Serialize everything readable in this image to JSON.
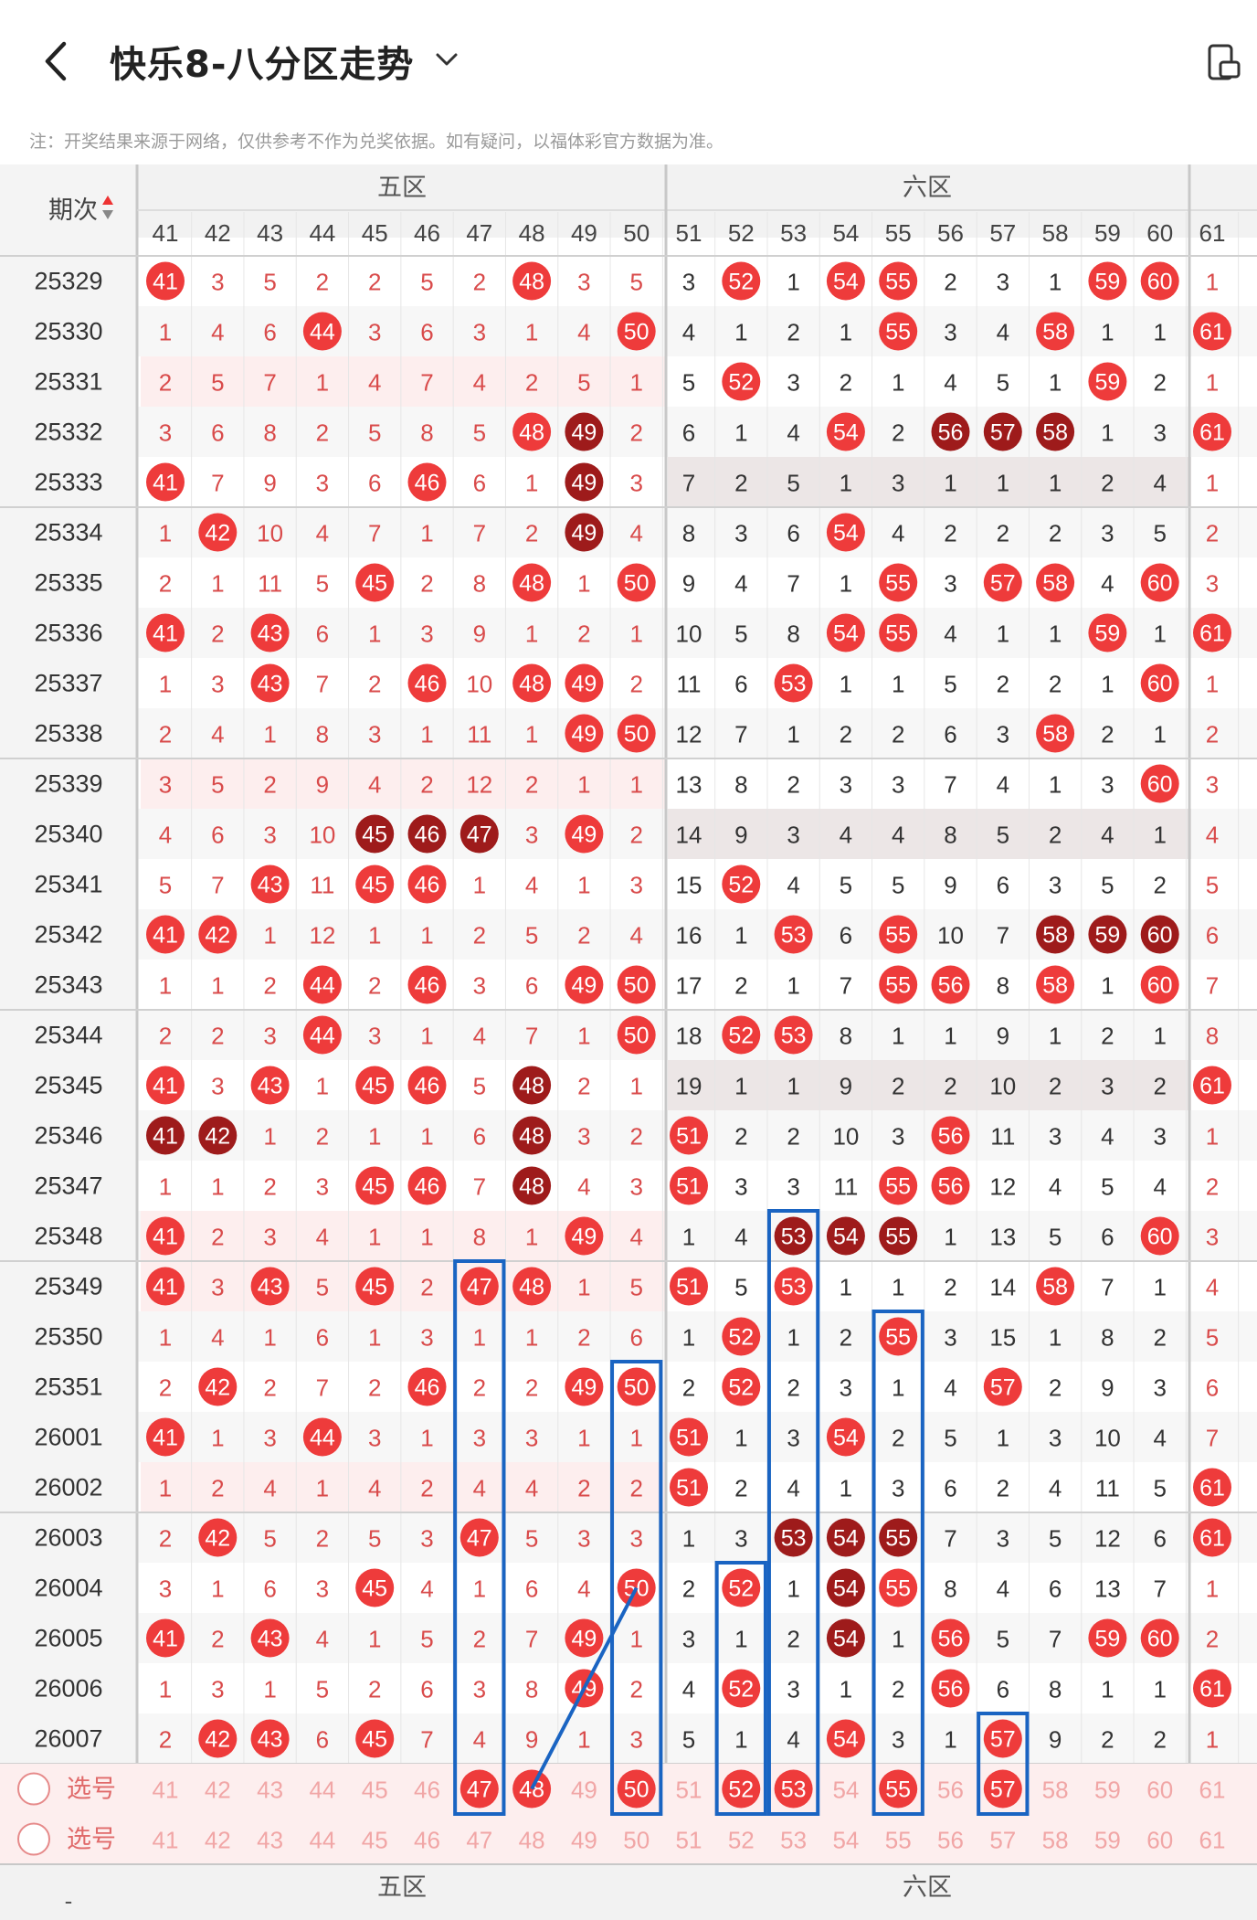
{
  "header": {
    "title": "快乐8-八分区走势",
    "notice": "注：开奖结果来源于网络，仅供参考不作为兑奖依据。如有疑问，以福体彩官方数据为准。"
  },
  "table": {
    "period_header": "期次",
    "zones_top": [
      "五区",
      "六区"
    ],
    "zones_bottom": [
      "五区",
      "六区"
    ],
    "select_label": "选号",
    "dash": "-",
    "columns": [
      41,
      42,
      43,
      44,
      45,
      46,
      47,
      48,
      49,
      50,
      51,
      52,
      53,
      54,
      55,
      56,
      57,
      58,
      59,
      60,
      61
    ],
    "rows": [
      {
        "period": "25329",
        "vals": [
          "H41",
          "3",
          "5",
          "2",
          "2",
          "5",
          "2",
          "H48",
          "3",
          "5",
          "3",
          "H52",
          "1",
          "H54",
          "H55",
          "2",
          "3",
          "1",
          "H59",
          "H60",
          "1"
        ]
      },
      {
        "period": "25330",
        "vals": [
          "1",
          "4",
          "6",
          "H44",
          "3",
          "6",
          "3",
          "1",
          "4",
          "H50",
          "4",
          "1",
          "2",
          "1",
          "H55",
          "3",
          "4",
          "H58",
          "1",
          "1",
          "H61"
        ]
      },
      {
        "period": "25331",
        "vals": [
          "2",
          "5",
          "7",
          "1",
          "4",
          "7",
          "4",
          "2",
          "5",
          "1",
          "5",
          "H52",
          "3",
          "2",
          "1",
          "4",
          "5",
          "1",
          "H59",
          "2",
          "1"
        ]
      },
      {
        "period": "25332",
        "vals": [
          "3",
          "6",
          "8",
          "2",
          "5",
          "8",
          "5",
          "H48",
          "D49",
          "2",
          "6",
          "1",
          "4",
          "H54",
          "2",
          "D56",
          "D57",
          "D58",
          "1",
          "3",
          "H61"
        ]
      },
      {
        "period": "25333",
        "vals": [
          "H41",
          "7",
          "9",
          "3",
          "6",
          "H46",
          "6",
          "1",
          "D49",
          "3",
          "7",
          "2",
          "5",
          "1",
          "3",
          "1",
          "1",
          "1",
          "2",
          "4",
          "1"
        ]
      },
      {
        "period": "25334",
        "vals": [
          "1",
          "H42",
          "10",
          "4",
          "7",
          "1",
          "7",
          "2",
          "D49",
          "4",
          "8",
          "3",
          "6",
          "H54",
          "4",
          "2",
          "2",
          "2",
          "3",
          "5",
          "2"
        ]
      },
      {
        "period": "25335",
        "vals": [
          "2",
          "1",
          "11",
          "5",
          "H45",
          "2",
          "8",
          "H48",
          "1",
          "H50",
          "9",
          "4",
          "7",
          "1",
          "H55",
          "3",
          "H57",
          "H58",
          "4",
          "H60",
          "3"
        ]
      },
      {
        "period": "25336",
        "vals": [
          "H41",
          "2",
          "H43",
          "6",
          "1",
          "3",
          "9",
          "1",
          "2",
          "1",
          "10",
          "5",
          "8",
          "H54",
          "H55",
          "4",
          "1",
          "1",
          "H59",
          "1",
          "H61"
        ]
      },
      {
        "period": "25337",
        "vals": [
          "1",
          "3",
          "H43",
          "7",
          "2",
          "H46",
          "10",
          "H48",
          "H49",
          "2",
          "11",
          "6",
          "H53",
          "1",
          "1",
          "5",
          "2",
          "2",
          "1",
          "H60",
          "1"
        ]
      },
      {
        "period": "25338",
        "vals": [
          "2",
          "4",
          "1",
          "8",
          "3",
          "1",
          "11",
          "1",
          "H49",
          "H50",
          "12",
          "7",
          "1",
          "2",
          "2",
          "6",
          "3",
          "H58",
          "2",
          "1",
          "2"
        ]
      },
      {
        "period": "25339",
        "vals": [
          "3",
          "5",
          "2",
          "9",
          "4",
          "2",
          "12",
          "2",
          "1",
          "1",
          "13",
          "8",
          "2",
          "3",
          "3",
          "7",
          "4",
          "1",
          "3",
          "H60",
          "3"
        ]
      },
      {
        "period": "25340",
        "vals": [
          "4",
          "6",
          "3",
          "10",
          "D45",
          "D46",
          "D47",
          "3",
          "H49",
          "2",
          "14",
          "9",
          "3",
          "4",
          "4",
          "8",
          "5",
          "2",
          "4",
          "1",
          "4"
        ]
      },
      {
        "period": "25341",
        "vals": [
          "5",
          "7",
          "H43",
          "11",
          "H45",
          "H46",
          "1",
          "4",
          "1",
          "3",
          "15",
          "H52",
          "4",
          "5",
          "5",
          "9",
          "6",
          "3",
          "5",
          "2",
          "5"
        ]
      },
      {
        "period": "25342",
        "vals": [
          "H41",
          "H42",
          "1",
          "12",
          "1",
          "1",
          "2",
          "5",
          "2",
          "4",
          "16",
          "1",
          "H53",
          "6",
          "H55",
          "10",
          "7",
          "D58",
          "D59",
          "D60",
          "6"
        ]
      },
      {
        "period": "25343",
        "vals": [
          "1",
          "1",
          "2",
          "H44",
          "2",
          "H46",
          "3",
          "6",
          "H49",
          "H50",
          "17",
          "2",
          "1",
          "7",
          "H55",
          "H56",
          "8",
          "H58",
          "1",
          "H60",
          "7"
        ]
      },
      {
        "period": "25344",
        "vals": [
          "2",
          "2",
          "3",
          "H44",
          "3",
          "1",
          "4",
          "7",
          "1",
          "H50",
          "18",
          "H52",
          "H53",
          "8",
          "1",
          "1",
          "9",
          "1",
          "2",
          "1",
          "8"
        ]
      },
      {
        "period": "25345",
        "vals": [
          "H41",
          "3",
          "H43",
          "1",
          "H45",
          "H46",
          "5",
          "D48",
          "2",
          "1",
          "19",
          "1",
          "1",
          "9",
          "2",
          "2",
          "10",
          "2",
          "3",
          "2",
          "H61"
        ]
      },
      {
        "period": "25346",
        "vals": [
          "D41",
          "D42",
          "1",
          "2",
          "1",
          "1",
          "6",
          "D48",
          "3",
          "2",
          "H51",
          "2",
          "2",
          "10",
          "3",
          "H56",
          "11",
          "3",
          "4",
          "3",
          "1"
        ]
      },
      {
        "period": "25347",
        "vals": [
          "1",
          "1",
          "2",
          "3",
          "H45",
          "H46",
          "7",
          "D48",
          "4",
          "3",
          "H51",
          "3",
          "3",
          "11",
          "H55",
          "H56",
          "12",
          "4",
          "5",
          "4",
          "2"
        ]
      },
      {
        "period": "25348",
        "vals": [
          "H41",
          "2",
          "3",
          "4",
          "1",
          "1",
          "8",
          "1",
          "H49",
          "4",
          "1",
          "4",
          "D53",
          "D54",
          "D55",
          "1",
          "13",
          "5",
          "6",
          "H60",
          "3"
        ]
      },
      {
        "period": "25349",
        "vals": [
          "H41",
          "3",
          "H43",
          "5",
          "H45",
          "2",
          "H47",
          "H48",
          "1",
          "5",
          "H51",
          "5",
          "H53",
          "1",
          "1",
          "2",
          "14",
          "H58",
          "7",
          "1",
          "4"
        ]
      },
      {
        "period": "25350",
        "vals": [
          "1",
          "4",
          "1",
          "6",
          "1",
          "3",
          "1",
          "1",
          "2",
          "6",
          "1",
          "H52",
          "1",
          "2",
          "H55",
          "3",
          "15",
          "1",
          "8",
          "2",
          "5"
        ]
      },
      {
        "period": "25351",
        "vals": [
          "2",
          "H42",
          "2",
          "7",
          "2",
          "H46",
          "2",
          "2",
          "H49",
          "H50",
          "2",
          "H52",
          "2",
          "3",
          "1",
          "4",
          "H57",
          "2",
          "9",
          "3",
          "6"
        ]
      },
      {
        "period": "26001",
        "vals": [
          "H41",
          "1",
          "3",
          "H44",
          "3",
          "1",
          "3",
          "3",
          "1",
          "1",
          "H51",
          "1",
          "3",
          "H54",
          "2",
          "5",
          "1",
          "3",
          "10",
          "4",
          "7"
        ]
      },
      {
        "period": "26002",
        "vals": [
          "1",
          "2",
          "4",
          "1",
          "4",
          "2",
          "4",
          "4",
          "2",
          "2",
          "H51",
          "2",
          "4",
          "1",
          "3",
          "6",
          "2",
          "4",
          "11",
          "5",
          "H61"
        ]
      },
      {
        "period": "26003",
        "vals": [
          "2",
          "H42",
          "5",
          "2",
          "5",
          "3",
          "H47",
          "5",
          "3",
          "3",
          "1",
          "3",
          "D53",
          "D54",
          "D55",
          "7",
          "3",
          "5",
          "12",
          "6",
          "H61"
        ]
      },
      {
        "period": "26004",
        "vals": [
          "3",
          "1",
          "6",
          "3",
          "H45",
          "4",
          "1",
          "6",
          "4",
          "H50",
          "2",
          "H52",
          "1",
          "D54",
          "H55",
          "8",
          "4",
          "6",
          "13",
          "7",
          "1"
        ]
      },
      {
        "period": "26005",
        "vals": [
          "H41",
          "2",
          "H43",
          "4",
          "1",
          "5",
          "2",
          "7",
          "H49",
          "1",
          "3",
          "1",
          "2",
          "D54",
          "1",
          "H56",
          "5",
          "7",
          "H59",
          "H60",
          "2"
        ]
      },
      {
        "period": "26006",
        "vals": [
          "1",
          "3",
          "1",
          "5",
          "2",
          "6",
          "3",
          "8",
          "H49",
          "2",
          "4",
          "H52",
          "3",
          "1",
          "2",
          "H56",
          "6",
          "8",
          "1",
          "1",
          "H61"
        ]
      },
      {
        "period": "26007",
        "vals": [
          "2",
          "H42",
          "H43",
          "6",
          "H45",
          "7",
          "4",
          "9",
          "1",
          "3",
          "5",
          "1",
          "4",
          "H54",
          "3",
          "1",
          "H57",
          "9",
          "2",
          "2",
          "1"
        ]
      }
    ],
    "selected_row1": [
      47,
      48,
      50,
      52,
      53,
      55,
      57
    ],
    "colors": {
      "hit": "#ee3b3b",
      "dark": "#9e1b1b",
      "miss_text_red": "#d94b4b",
      "miss_text_dark": "#333333",
      "highlight_box": "#1a64c2"
    }
  }
}
